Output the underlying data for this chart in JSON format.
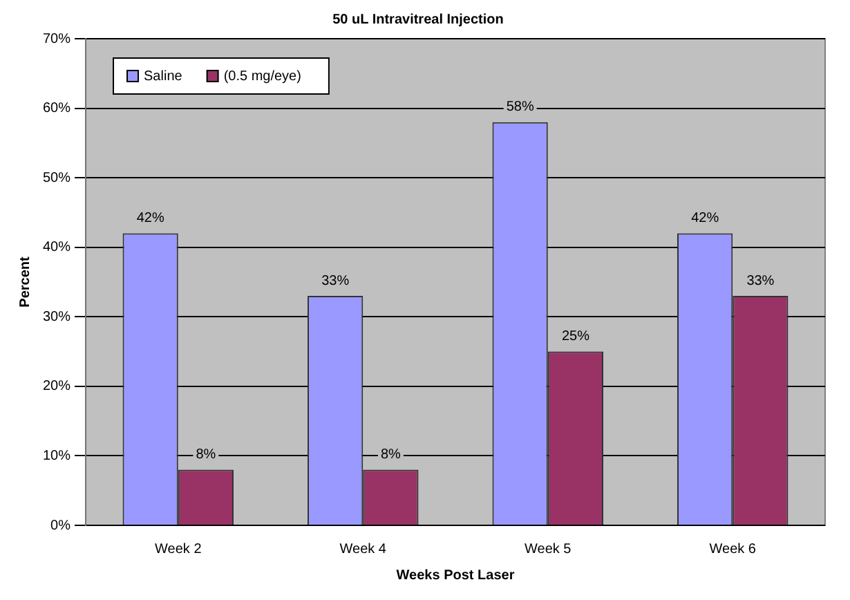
{
  "chart_data": {
    "type": "bar",
    "title": "50 uL Intravitreal Injection",
    "xlabel": "Weeks Post Laser",
    "ylabel": "Percent",
    "categories": [
      "Week 2",
      "Week 4",
      "Week 5",
      "Week 6"
    ],
    "series": [
      {
        "name": "Saline",
        "color": "#9999ff",
        "values": [
          42,
          33,
          58,
          42
        ],
        "value_labels": [
          "42%",
          "33%",
          "58%",
          "42%"
        ]
      },
      {
        "name": "(0.5 mg/eye)",
        "color": "#993366",
        "values": [
          8,
          8,
          25,
          33
        ],
        "value_labels": [
          "8%",
          "8%",
          "25%",
          "33%"
        ]
      }
    ],
    "ylim": [
      0,
      70
    ],
    "yticks": [
      {
        "value": 0,
        "label": "0%"
      },
      {
        "value": 10,
        "label": "10%"
      },
      {
        "value": 20,
        "label": "20%"
      },
      {
        "value": 30,
        "label": "30%"
      },
      {
        "value": 40,
        "label": "40%"
      },
      {
        "value": 50,
        "label": "50%"
      },
      {
        "value": 60,
        "label": "60%"
      },
      {
        "value": 70,
        "label": "70%"
      }
    ],
    "grid": "y",
    "legend": "top left"
  }
}
